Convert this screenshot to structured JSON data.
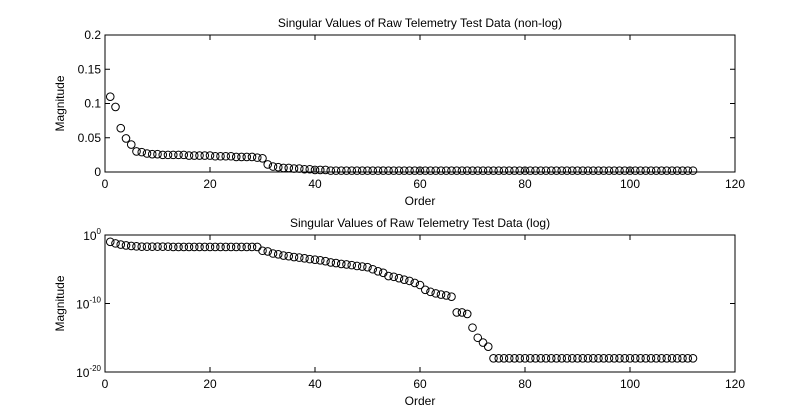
{
  "chart_data": [
    {
      "type": "scatter",
      "title": "Singular Values of Raw Telemetry Test Data (non-log)",
      "xlabel": "Order",
      "ylabel": "Magnitude",
      "xlim": [
        0,
        120
      ],
      "ylim": [
        0,
        0.2
      ],
      "yscale": "linear",
      "grid": false,
      "marker": "open circle",
      "color": "#000000",
      "xticks": [
        0,
        20,
        40,
        60,
        80,
        100,
        120
      ],
      "xtick_labels": [
        "0",
        "20",
        "40",
        "60",
        "80",
        "100",
        "120"
      ],
      "yticks": [
        0,
        0.05,
        0.1,
        0.15,
        0.2
      ],
      "ytick_labels": [
        "0",
        "0.05",
        "0.1",
        "0.15",
        "0.2"
      ],
      "x": [
        1,
        2,
        3,
        4,
        5,
        6,
        7,
        8,
        9,
        10,
        11,
        12,
        13,
        14,
        15,
        16,
        17,
        18,
        19,
        20,
        21,
        22,
        23,
        24,
        25,
        26,
        27,
        28,
        29,
        30,
        31,
        32,
        33,
        34,
        35,
        36,
        37,
        38,
        39,
        40,
        41,
        42,
        43,
        44,
        45,
        46,
        47,
        48,
        49,
        50,
        51,
        52,
        53,
        54,
        55,
        56,
        57,
        58,
        59,
        60,
        61,
        62,
        63,
        64,
        65,
        66,
        67,
        68,
        69,
        70,
        71,
        72,
        73,
        74,
        75,
        76,
        77,
        78,
        79,
        80,
        81,
        82,
        83,
        84,
        85,
        86,
        87,
        88,
        89,
        90,
        91,
        92,
        93,
        94,
        95,
        96,
        97,
        98,
        99,
        100,
        101,
        102,
        103,
        104,
        105,
        106,
        107,
        108,
        109,
        110,
        111,
        112
      ],
      "y": [
        0.11,
        0.095,
        0.064,
        0.049,
        0.04,
        0.03,
        0.029,
        0.027,
        0.026,
        0.026,
        0.025,
        0.025,
        0.025,
        0.025,
        0.025,
        0.024,
        0.024,
        0.024,
        0.024,
        0.024,
        0.023,
        0.023,
        0.023,
        0.023,
        0.022,
        0.022,
        0.022,
        0.022,
        0.021,
        0.02,
        0.011,
        0.008,
        0.007,
        0.006,
        0.006,
        0.005,
        0.005,
        0.004,
        0.004,
        0.003,
        0.003,
        0.003,
        0.002,
        0.002,
        0.002,
        0.002,
        0.002,
        0.002,
        0.002,
        0.002,
        0.002,
        0.002,
        0.002,
        0.002,
        0.002,
        0.002,
        0.002,
        0.002,
        0.002,
        0.002,
        0.002,
        0.002,
        0.002,
        0.002,
        0.002,
        0.002,
        0.002,
        0.002,
        0.002,
        0.002,
        0.002,
        0.002,
        0.002,
        0.002,
        0.002,
        0.002,
        0.002,
        0.002,
        0.002,
        0.002,
        0.002,
        0.002,
        0.002,
        0.002,
        0.002,
        0.002,
        0.002,
        0.002,
        0.002,
        0.002,
        0.002,
        0.002,
        0.002,
        0.002,
        0.002,
        0.002,
        0.002,
        0.002,
        0.002,
        0.002,
        0.002,
        0.002,
        0.002,
        0.002,
        0.002,
        0.002,
        0.002,
        0.002,
        0.002,
        0.002,
        0.002,
        0.002
      ]
    },
    {
      "type": "scatter",
      "title": "Singular Values of Raw Telemetry Test Data (log)",
      "xlabel": "Order",
      "ylabel": "Magnitude",
      "xlim": [
        0,
        120
      ],
      "ylim": [
        1e-20,
        1
      ],
      "yscale": "log",
      "grid": false,
      "marker": "open circle",
      "color": "#000000",
      "xticks": [
        0,
        20,
        40,
        60,
        80,
        100,
        120
      ],
      "xtick_labels": [
        "0",
        "20",
        "40",
        "60",
        "80",
        "100",
        "120"
      ],
      "yticks": [
        1e-20,
        1e-10,
        1
      ],
      "ytick_labels": [
        {
          "base": "10",
          "exp": "-20"
        },
        {
          "base": "10",
          "exp": "-10"
        },
        {
          "base": "10",
          "exp": "0"
        }
      ],
      "x": [
        1,
        2,
        3,
        4,
        5,
        6,
        7,
        8,
        9,
        10,
        11,
        12,
        13,
        14,
        15,
        16,
        17,
        18,
        19,
        20,
        21,
        22,
        23,
        24,
        25,
        26,
        27,
        28,
        29,
        30,
        31,
        32,
        33,
        34,
        35,
        36,
        37,
        38,
        39,
        40,
        41,
        42,
        43,
        44,
        45,
        46,
        47,
        48,
        49,
        50,
        51,
        52,
        53,
        54,
        55,
        56,
        57,
        58,
        59,
        60,
        61,
        62,
        63,
        64,
        65,
        66,
        67,
        68,
        69,
        70,
        71,
        72,
        73,
        74,
        75,
        76,
        77,
        78,
        79,
        80,
        81,
        82,
        83,
        84,
        85,
        86,
        87,
        88,
        89,
        90,
        91,
        92,
        93,
        94,
        95,
        96,
        97,
        98,
        99,
        100,
        101,
        102,
        103,
        104,
        105,
        106,
        107,
        108,
        109,
        110,
        111,
        112
      ],
      "y": [
        0.1,
        0.06,
        0.04,
        0.03,
        0.025,
        0.022,
        0.02,
        0.02,
        0.02,
        0.02,
        0.02,
        0.02,
        0.018,
        0.018,
        0.018,
        0.018,
        0.018,
        0.018,
        0.018,
        0.018,
        0.018,
        0.018,
        0.018,
        0.018,
        0.018,
        0.018,
        0.018,
        0.018,
        0.018,
        0.005,
        0.004,
        0.002,
        0.0015,
        0.001,
        0.0008,
        0.0006,
        0.0005,
        0.0004,
        0.0003,
        0.00025,
        0.0002,
        0.00015,
        0.0001,
        8e-05,
        6e-05,
        5e-05,
        4e-05,
        3e-05,
        2.5e-05,
        2e-05,
        1e-05,
        5e-06,
        3e-06,
        1e-06,
        8e-07,
        5e-07,
        3e-07,
        2e-07,
        1e-07,
        5e-08,
        1e-08,
        5e-09,
        3e-09,
        2e-09,
        1.5e-09,
        1e-09,
        5e-12,
        5e-12,
        3e-12,
        3e-14,
        1e-15,
        2e-16,
        5e-17,
        1e-18,
        1e-18,
        1e-18,
        1e-18,
        1e-18,
        1e-18,
        1e-18,
        1e-18,
        1e-18,
        1e-18,
        1e-18,
        1e-18,
        1e-18,
        1e-18,
        1e-18,
        1e-18,
        1e-18,
        1e-18,
        1e-18,
        1e-18,
        1e-18,
        1e-18,
        1e-18,
        1e-18,
        1e-18,
        1e-18,
        1e-18,
        1e-18,
        1e-18,
        1e-18,
        1e-18,
        1e-18,
        1e-18,
        1e-18,
        1e-18,
        1e-18,
        1e-18,
        1e-18,
        1e-18
      ]
    }
  ]
}
